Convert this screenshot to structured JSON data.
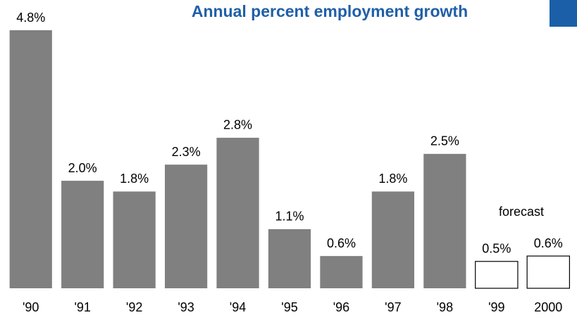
{
  "chart_data": {
    "type": "bar",
    "title": "Annual percent employment growth",
    "categories": [
      "'90",
      "'91",
      "'92",
      "'93",
      "'94",
      "'95",
      "'96",
      "'97",
      "'98",
      "'99",
      "2000"
    ],
    "values": [
      4.8,
      2.0,
      1.8,
      2.3,
      2.8,
      1.1,
      0.6,
      1.8,
      2.5,
      0.5,
      0.6
    ],
    "value_labels": [
      "4.8%",
      "2.0%",
      "1.8%",
      "2.3%",
      "2.8%",
      "1.1%",
      "0.6%",
      "1.8%",
      "2.5%",
      "0.5%",
      "0.6%"
    ],
    "colors": [
      "#808080",
      "#808080",
      "#808080",
      "#808080",
      "#808080",
      "#808080",
      "#808080",
      "#808080",
      "#808080",
      "#ffffff",
      "#ffffff"
    ],
    "edgecolors": [
      null,
      null,
      null,
      null,
      null,
      null,
      null,
      null,
      null,
      "#000000",
      "#000000"
    ],
    "annotation": "forecast"
  }
}
